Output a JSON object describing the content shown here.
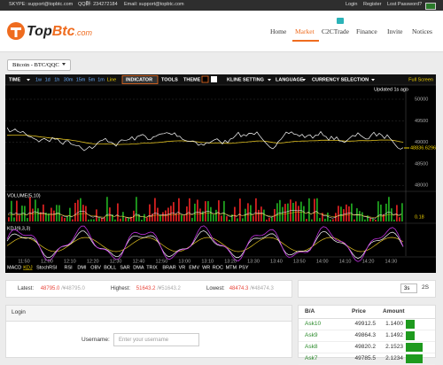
{
  "topbar": {
    "skype": "SKYPE: support@topbtc.com",
    "qq": "QQ群: 234272184",
    "email": "Email: support@topbtc.com",
    "links": [
      "Login",
      "Register",
      "Lost Password?"
    ]
  },
  "header": {
    "logo": [
      "Top",
      "Btc",
      ".com"
    ],
    "nav": [
      "Home",
      "Market",
      "C2CTrade",
      "Finance",
      "Invite",
      "Notices"
    ],
    "active": 1
  },
  "market": {
    "pair": "Bitcoin - BTC/QQC"
  },
  "toolbar": {
    "time": "TIME",
    "periods": [
      "1w",
      "1d",
      "1h",
      "30m",
      "15m",
      "5m",
      "1m",
      "Line"
    ],
    "indicator": "INDICATOR",
    "tools": "TOOLS",
    "theme": "THEME",
    "kline": "KLINE SETTING",
    "language": "LANGUAGE",
    "currency": "CURRENCY SELECTION",
    "fullscreen": "Full Screen"
  },
  "chart": {
    "updated": "Updated 1s ago",
    "price_axis": [
      50000,
      49500,
      49000,
      48500,
      48000
    ],
    "current": "48836.6296",
    "volume_label": "VOLUME(5,10)",
    "volume_value": "0.18",
    "kdj_label": "KDJ(9,3,3)",
    "time_axis": [
      "11:50",
      "12:00",
      "12:10",
      "12:20",
      "12:30",
      "12:40",
      "12:50",
      "13:00",
      "13:10",
      "13:20",
      "13:30",
      "13:40",
      "13:50",
      "14:00",
      "14:10",
      "14:20",
      "14:30"
    ],
    "indicators": [
      "MACD",
      "KDJ",
      "StochRSI",
      "RSI",
      "DMI",
      "OBV",
      "BOLL",
      "SAR",
      "DMA",
      "TRIX",
      "BRAR",
      "VR",
      "EMV",
      "WR",
      "ROC",
      "MTM",
      "PSY"
    ],
    "active_indicator": 1
  },
  "ticker": {
    "latest_label": "Latest:",
    "latest": "48795.0",
    "latest_cny": "/¥48795.0",
    "highest_label": "Highest:",
    "highest": "51643.2",
    "highest_cny": "/¥51643.2",
    "lowest_label": "Lowest:",
    "lowest": "48474.3",
    "lowest_cny": "/¥48474.3"
  },
  "refresh": {
    "interval": "3s",
    "value": "2S"
  },
  "login": {
    "title": "Login",
    "username_label": "Username:",
    "username_placeholder": "Enter your username"
  },
  "orderbook": {
    "headers": [
      "B/A",
      "Price",
      "Amount"
    ],
    "rows": [
      [
        "Ask10",
        "49912.5",
        "1.1400"
      ],
      [
        "Ask9",
        "49864.3",
        "1.1492"
      ],
      [
        "Ask8",
        "49820.2",
        "2.1523"
      ],
      [
        "Ask7",
        "49785.5",
        "2.1234"
      ]
    ]
  }
}
